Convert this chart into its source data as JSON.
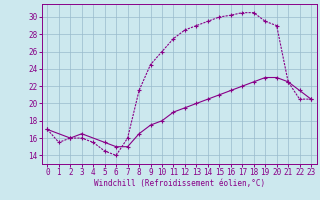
{
  "xlabel": "Windchill (Refroidissement éolien,°C)",
  "bg_color": "#cce8ee",
  "line_color": "#880088",
  "grid_color": "#99bbcc",
  "xlim": [
    -0.5,
    23.5
  ],
  "ylim": [
    13.0,
    31.5
  ],
  "yticks": [
    14,
    16,
    18,
    20,
    22,
    24,
    26,
    28,
    30
  ],
  "xticks": [
    0,
    1,
    2,
    3,
    4,
    5,
    6,
    7,
    8,
    9,
    10,
    11,
    12,
    13,
    14,
    15,
    16,
    17,
    18,
    19,
    20,
    21,
    22,
    23
  ],
  "curve1_x": [
    0,
    1,
    2,
    3,
    4,
    5,
    6,
    7,
    8,
    9,
    10,
    11,
    12,
    13,
    14,
    15,
    16,
    17,
    18,
    19,
    20,
    21,
    22,
    23
  ],
  "curve1_y": [
    17.0,
    15.5,
    16.0,
    16.0,
    15.5,
    14.5,
    14.0,
    16.0,
    21.5,
    24.5,
    26.0,
    27.5,
    28.5,
    29.0,
    29.5,
    30.0,
    30.2,
    30.5,
    30.5,
    29.5,
    29.0,
    22.5,
    20.5,
    20.5
  ],
  "curve2_x": [
    0,
    2,
    3,
    5,
    6,
    7,
    8,
    9,
    10,
    11,
    12,
    13,
    14,
    15,
    16,
    17,
    18,
    19,
    20,
    21,
    22,
    23
  ],
  "curve2_y": [
    17.0,
    16.0,
    16.5,
    15.5,
    15.0,
    15.0,
    16.5,
    17.5,
    18.0,
    19.0,
    19.5,
    20.0,
    20.5,
    21.0,
    21.5,
    22.0,
    22.5,
    23.0,
    23.0,
    22.5,
    21.5,
    20.5
  ]
}
